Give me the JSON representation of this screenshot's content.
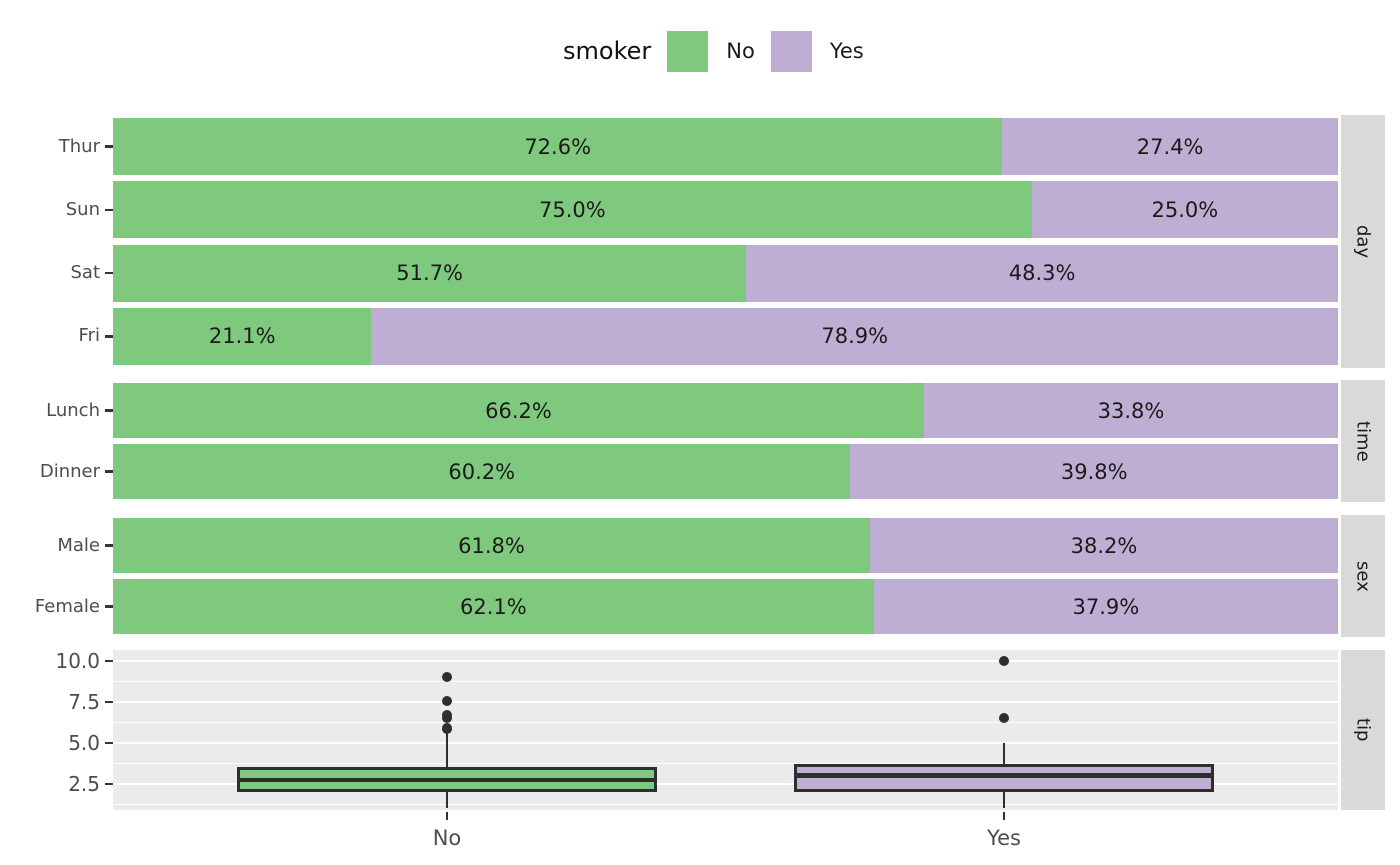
{
  "legend": {
    "title": "smoker",
    "items": [
      {
        "label": "No",
        "color": "#7fc97f"
      },
      {
        "label": "Yes",
        "color": "#beaed4"
      }
    ]
  },
  "colors": {
    "no_green": "#7fc97f",
    "yes_purple": "#beaed4",
    "panel_background": "#ebebeb",
    "strip_background": "#d9d9d9",
    "gridline": "#ffffff",
    "box_outline": "#2e2e2e",
    "axis_text": "#4d4d4d",
    "value_text": "#1a1a1a"
  },
  "chart_data": [
    {
      "type": "bar",
      "facet": "day",
      "orientation": "horizontal",
      "unit": "percent",
      "stacked": true,
      "xlim": [
        0,
        100
      ],
      "categories": [
        "Thur",
        "Sun",
        "Sat",
        "Fri"
      ],
      "series": [
        {
          "name": "No",
          "values": [
            72.6,
            75.0,
            51.7,
            21.1
          ]
        },
        {
          "name": "Yes",
          "values": [
            27.4,
            25.0,
            48.3,
            78.9
          ]
        }
      ]
    },
    {
      "type": "bar",
      "facet": "time",
      "orientation": "horizontal",
      "unit": "percent",
      "stacked": true,
      "xlim": [
        0,
        100
      ],
      "categories": [
        "Lunch",
        "Dinner"
      ],
      "series": [
        {
          "name": "No",
          "values": [
            66.2,
            60.2
          ]
        },
        {
          "name": "Yes",
          "values": [
            33.8,
            39.8
          ]
        }
      ]
    },
    {
      "type": "bar",
      "facet": "sex",
      "orientation": "horizontal",
      "unit": "percent",
      "stacked": true,
      "xlim": [
        0,
        100
      ],
      "categories": [
        "Male",
        "Female"
      ],
      "series": [
        {
          "name": "No",
          "values": [
            61.8,
            62.1
          ]
        },
        {
          "name": "Yes",
          "values": [
            38.2,
            37.9
          ]
        }
      ]
    },
    {
      "type": "boxplot",
      "facet": "tip",
      "categories": [
        "No",
        "Yes"
      ],
      "ylabel_ticks": [
        10.0,
        7.5,
        5.0,
        2.5
      ],
      "ylim": [
        0.9,
        10.55
      ],
      "grid": "major-and-minor-white-on-gray",
      "boxes": [
        {
          "category": "No",
          "q1": 2.0,
          "median": 2.74,
          "q3": 3.5,
          "whisker_low": 1.0,
          "whisker_high": 5.6,
          "outliers": [
            5.85,
            5.92,
            6.5,
            6.73,
            7.58,
            9.0
          ]
        },
        {
          "category": "Yes",
          "q1": 2.0,
          "median": 3.0,
          "q3": 3.68,
          "whisker_low": 1.0,
          "whisker_high": 5.0,
          "outliers": [
            6.5,
            10.0
          ]
        }
      ]
    }
  ]
}
